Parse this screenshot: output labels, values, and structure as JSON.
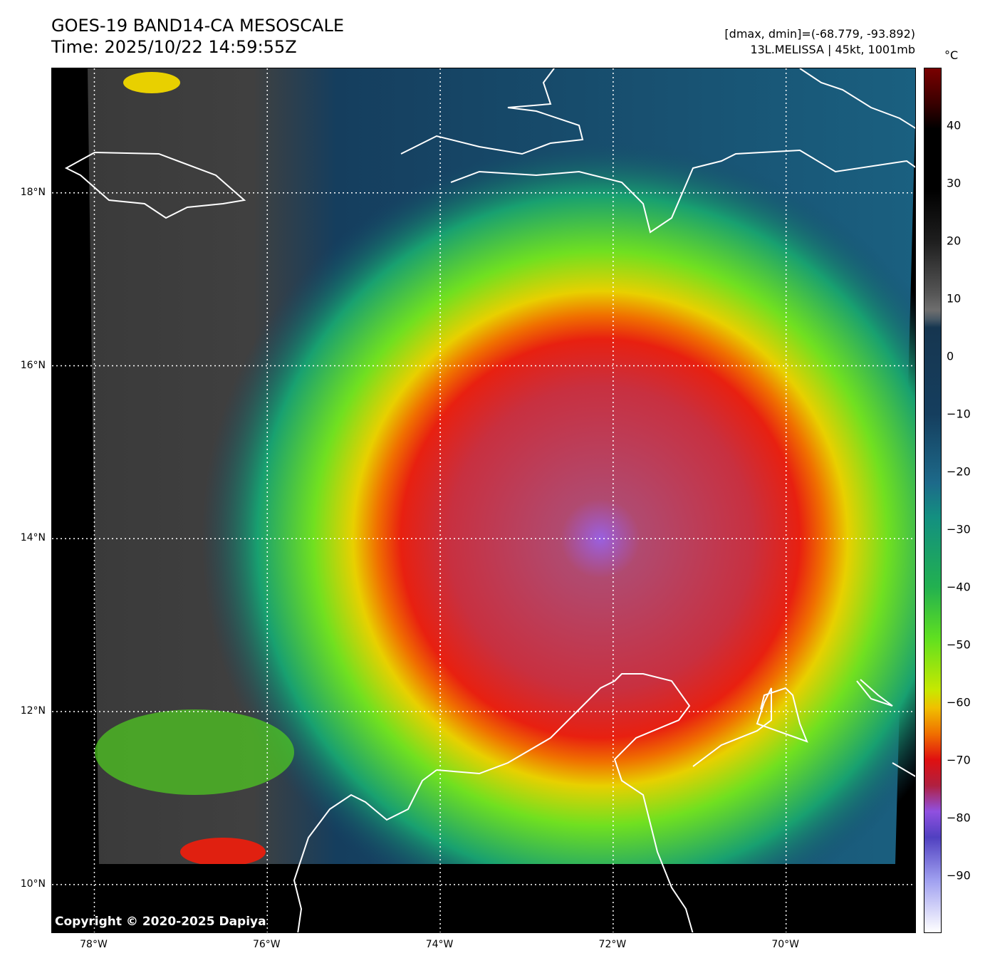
{
  "title": {
    "line1": "GOES-19 BAND14-CA MESOSCALE",
    "line2": "Time: 2025/10/22 14:59:55Z"
  },
  "info": {
    "line1": "[dmax, dmin]=(-68.779, -93.892)",
    "line2": "13L.MELISSA | 45kt, 1001mb"
  },
  "colorbar": {
    "unit": "°C",
    "range": [
      -100,
      50
    ],
    "ticks": [
      "40",
      "30",
      "20",
      "10",
      "0",
      "−10",
      "−20",
      "−30",
      "−40",
      "−50",
      "−60",
      "−70",
      "−80",
      "−90"
    ],
    "tick_values": [
      40,
      30,
      20,
      10,
      0,
      -10,
      -20,
      -30,
      -40,
      -50,
      -60,
      -70,
      -80,
      -90
    ]
  },
  "map": {
    "lon_range": [
      -78.49,
      -68.49
    ],
    "lat_range": [
      9.43,
      19.44
    ],
    "lat_labels": [
      "18°N",
      "16°N",
      "14°N",
      "12°N",
      "10°N"
    ],
    "lat_values": [
      18,
      16,
      14,
      12,
      10
    ],
    "lon_labels": [
      "78°W",
      "76°W",
      "74°W",
      "72°W",
      "70°W"
    ],
    "lon_values": [
      -78,
      -76,
      -74,
      -72,
      -70
    ],
    "storm_center": [
      -72.1,
      13.9
    ]
  },
  "copyright": "Copyright © 2020-2025 Dapiya"
}
